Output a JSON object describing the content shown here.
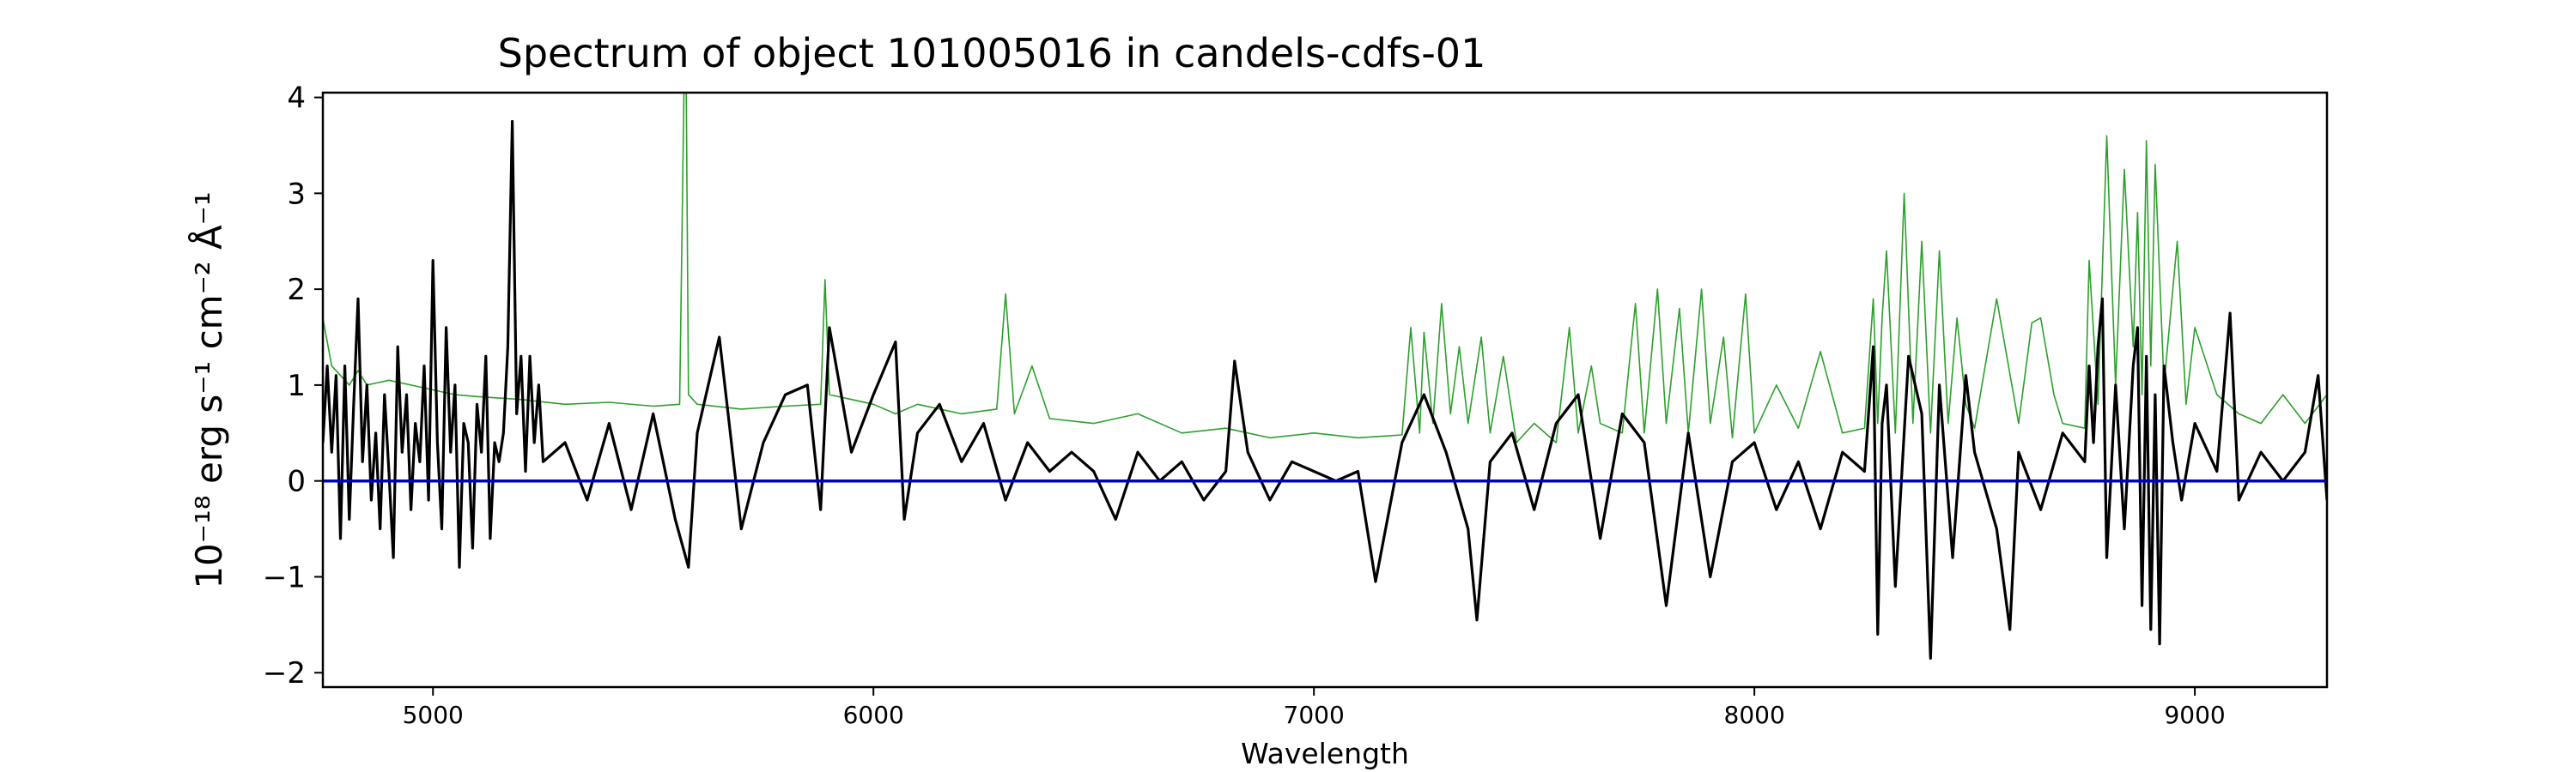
{
  "chart_data": {
    "type": "line",
    "title": "Spectrum of object 101005016 in candels-cdfs-01",
    "xlabel": "Wavelength",
    "ylabel": "10⁻¹⁸ erg s⁻¹ cm⁻² Å⁻¹",
    "xlim": [
      4750,
      9300
    ],
    "ylim": [
      -2.15,
      4.05
    ],
    "x_ticks": [
      5000,
      6000,
      7000,
      8000,
      9000
    ],
    "y_ticks": [
      -2,
      -1,
      0,
      1,
      2,
      3,
      4
    ],
    "grid": false,
    "colors": {
      "flux": "#000000",
      "error": "#2ca02c",
      "zero": "#0000cc"
    },
    "series": [
      {
        "role": "flux",
        "x": [
          4750,
          4760,
          4770,
          4780,
          4790,
          4800,
          4810,
          4820,
          4830,
          4840,
          4850,
          4860,
          4870,
          4880,
          4890,
          4900,
          4910,
          4920,
          4930,
          4940,
          4950,
          4960,
          4970,
          4980,
          4990,
          5000,
          5010,
          5020,
          5030,
          5040,
          5050,
          5060,
          5070,
          5080,
          5090,
          5100,
          5110,
          5120,
          5130,
          5140,
          5150,
          5160,
          5170,
          5180,
          5190,
          5200,
          5210,
          5220,
          5230,
          5240,
          5250,
          5300,
          5350,
          5400,
          5450,
          5500,
          5550,
          5580,
          5600,
          5650,
          5700,
          5750,
          5800,
          5850,
          5880,
          5900,
          5950,
          6000,
          6050,
          6070,
          6100,
          6150,
          6200,
          6250,
          6300,
          6350,
          6400,
          6450,
          6500,
          6550,
          6600,
          6650,
          6700,
          6750,
          6800,
          6820,
          6850,
          6900,
          6950,
          7000,
          7050,
          7100,
          7140,
          7200,
          7250,
          7300,
          7350,
          7370,
          7400,
          7450,
          7500,
          7550,
          7600,
          7650,
          7700,
          7750,
          7800,
          7850,
          7900,
          7950,
          8000,
          8050,
          8100,
          8150,
          8200,
          8250,
          8270,
          8280,
          8290,
          8300,
          8320,
          8350,
          8380,
          8400,
          8420,
          8450,
          8480,
          8500,
          8550,
          8580,
          8600,
          8650,
          8700,
          8750,
          8760,
          8770,
          8780,
          8790,
          8800,
          8820,
          8840,
          8860,
          8870,
          8880,
          8890,
          8900,
          8910,
          8920,
          8930,
          8950,
          8970,
          9000,
          9050,
          9080,
          9100,
          9150,
          9200,
          9250,
          9280,
          9300
        ],
        "y": [
          0.4,
          1.2,
          0.3,
          1.1,
          -0.6,
          1.2,
          -0.4,
          0.8,
          1.9,
          0.2,
          1.0,
          -0.2,
          0.5,
          -0.5,
          0.9,
          0.1,
          -0.8,
          1.4,
          0.3,
          0.9,
          -0.3,
          0.6,
          0.2,
          1.2,
          -0.2,
          2.3,
          0.4,
          -0.5,
          1.6,
          0.3,
          1.0,
          -0.9,
          0.6,
          0.4,
          -0.7,
          0.8,
          0.3,
          1.3,
          -0.6,
          0.4,
          0.2,
          0.5,
          1.4,
          3.75,
          0.7,
          1.3,
          0.1,
          1.3,
          0.4,
          1.0,
          0.2,
          0.4,
          -0.2,
          0.6,
          -0.3,
          0.7,
          -0.4,
          -0.9,
          0.5,
          1.5,
          -0.5,
          0.4,
          0.9,
          1.0,
          -0.3,
          1.6,
          0.3,
          0.9,
          1.45,
          -0.4,
          0.5,
          0.8,
          0.2,
          0.6,
          -0.2,
          0.4,
          0.1,
          0.3,
          0.1,
          -0.4,
          0.3,
          0.0,
          0.2,
          -0.2,
          0.1,
          1.25,
          0.3,
          -0.2,
          0.2,
          0.1,
          0.0,
          0.1,
          -1.05,
          0.4,
          0.9,
          0.3,
          -0.5,
          -1.45,
          0.2,
          0.5,
          -0.3,
          0.6,
          0.9,
          -0.6,
          0.7,
          0.4,
          -1.3,
          0.5,
          -1.0,
          0.2,
          0.4,
          -0.3,
          0.2,
          -0.5,
          0.3,
          0.1,
          1.4,
          -1.6,
          0.6,
          1.0,
          -1.1,
          1.3,
          0.7,
          -1.85,
          1.0,
          -0.8,
          1.1,
          0.3,
          -0.5,
          -1.55,
          0.3,
          -0.3,
          0.5,
          0.2,
          1.2,
          0.4,
          1.4,
          1.9,
          -0.8,
          1.0,
          -0.5,
          1.2,
          1.6,
          -1.3,
          1.3,
          -1.55,
          0.9,
          -1.7,
          1.2,
          0.4,
          -0.2,
          0.6,
          0.1,
          1.75,
          -0.2,
          0.3,
          0.0,
          0.3,
          1.1,
          -0.2
        ]
      },
      {
        "role": "error",
        "x": [
          4750,
          4770,
          4790,
          4810,
          4830,
          4850,
          4900,
          4950,
          5000,
          5050,
          5100,
          5200,
          5300,
          5400,
          5500,
          5560,
          5570,
          5575,
          5580,
          5600,
          5700,
          5800,
          5880,
          5890,
          5900,
          5950,
          6000,
          6050,
          6100,
          6200,
          6280,
          6300,
          6320,
          6360,
          6400,
          6500,
          6600,
          6700,
          6800,
          6900,
          7000,
          7100,
          7200,
          7220,
          7240,
          7250,
          7270,
          7290,
          7310,
          7330,
          7350,
          7380,
          7400,
          7430,
          7460,
          7500,
          7550,
          7580,
          7600,
          7630,
          7650,
          7700,
          7730,
          7750,
          7780,
          7800,
          7830,
          7850,
          7880,
          7900,
          7930,
          7950,
          7980,
          8000,
          8050,
          8100,
          8150,
          8200,
          8250,
          8270,
          8280,
          8290,
          8300,
          8320,
          8340,
          8360,
          8380,
          8400,
          8420,
          8440,
          8460,
          8480,
          8500,
          8550,
          8600,
          8630,
          8650,
          8680,
          8700,
          8750,
          8760,
          8780,
          8800,
          8820,
          8840,
          8860,
          8870,
          8880,
          8890,
          8900,
          8910,
          8930,
          8960,
          8980,
          9000,
          9050,
          9100,
          9150,
          9200,
          9250,
          9300
        ],
        "y": [
          1.7,
          1.2,
          1.1,
          1.0,
          1.15,
          1.0,
          1.05,
          1.0,
          0.95,
          0.9,
          0.88,
          0.85,
          0.8,
          0.82,
          0.78,
          0.8,
          4.1,
          4.1,
          0.9,
          0.8,
          0.75,
          0.78,
          0.8,
          2.1,
          0.9,
          0.85,
          0.8,
          0.7,
          0.8,
          0.7,
          0.75,
          1.95,
          0.7,
          1.2,
          0.65,
          0.6,
          0.7,
          0.5,
          0.55,
          0.45,
          0.5,
          0.45,
          0.48,
          1.6,
          0.5,
          1.55,
          0.6,
          1.85,
          0.7,
          1.4,
          0.6,
          1.5,
          0.5,
          1.3,
          0.4,
          0.6,
          0.4,
          1.6,
          0.5,
          1.2,
          0.6,
          0.5,
          1.85,
          0.5,
          2.0,
          0.6,
          1.8,
          0.5,
          2.0,
          0.6,
          1.5,
          0.45,
          1.95,
          0.5,
          1.0,
          0.55,
          1.35,
          0.5,
          0.55,
          1.9,
          0.6,
          1.7,
          2.4,
          0.5,
          3.0,
          0.6,
          2.5,
          0.5,
          2.4,
          0.6,
          1.7,
          0.8,
          0.55,
          1.9,
          0.6,
          1.65,
          1.7,
          0.9,
          0.6,
          0.55,
          2.3,
          0.8,
          3.6,
          1.0,
          3.25,
          1.4,
          2.8,
          0.9,
          3.55,
          1.2,
          3.3,
          1.0,
          2.5,
          0.8,
          1.6,
          0.9,
          0.7,
          0.6,
          0.9,
          0.6,
          0.9
        ]
      },
      {
        "role": "zero",
        "x": [
          4750,
          9300
        ],
        "y": [
          0,
          0
        ]
      }
    ]
  }
}
